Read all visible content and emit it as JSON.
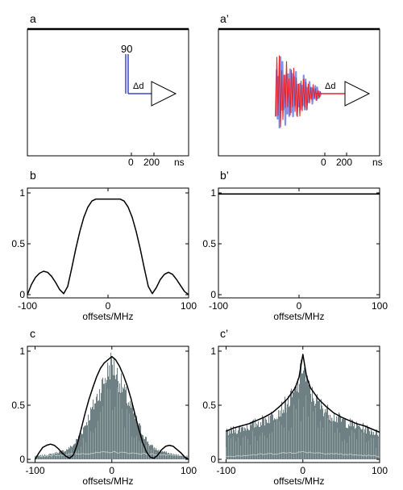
{
  "panel_labels": {
    "a": "a",
    "a_prime": "a’",
    "b": "b",
    "b_prime": "b’",
    "c": "c",
    "c_prime": "c’"
  },
  "pulse_a": {
    "amplitude_label": "90",
    "delay_label": "Δd",
    "axis_ticks": [
      "0",
      "200"
    ],
    "axis_unit": "ns",
    "pulse_color": "#3a46c8"
  },
  "pulse_a_prime": {
    "delay_label": "Δd",
    "axis_ticks": [
      "0",
      "200"
    ],
    "axis_unit": "ns",
    "colors": [
      "#e8232a",
      "#6f7fe0"
    ]
  },
  "chart_data": [
    {
      "panel": "b",
      "type": "line",
      "xlabel": "offsets/MHz",
      "ylabel": "",
      "xlim": [
        -100,
        100
      ],
      "ylim": [
        0,
        1
      ],
      "xticks": [
        "-100",
        "0",
        "100"
      ],
      "yticks": [
        "0",
        "0.5",
        "1"
      ],
      "series": [
        {
          "color": "#000000",
          "x": [
            -100,
            -95,
            -90,
            -85,
            -80,
            -75,
            -70,
            -65,
            -60,
            -55,
            -50,
            -45,
            -40,
            -35,
            -30,
            -25,
            -20,
            -15,
            -10,
            -5,
            0,
            5,
            10,
            15,
            20,
            25,
            30,
            35,
            40,
            45,
            50,
            55,
            60,
            65,
            70,
            75,
            80,
            85,
            90,
            95,
            100
          ],
          "y": [
            0.0,
            0.1,
            0.17,
            0.21,
            0.23,
            0.22,
            0.18,
            0.12,
            0.05,
            0.01,
            0.08,
            0.26,
            0.45,
            0.62,
            0.76,
            0.86,
            0.92,
            0.94,
            0.94,
            0.94,
            0.94,
            0.94,
            0.94,
            0.94,
            0.92,
            0.86,
            0.76,
            0.62,
            0.45,
            0.26,
            0.08,
            0.01,
            0.07,
            0.15,
            0.2,
            0.22,
            0.2,
            0.15,
            0.09,
            0.03,
            0.0
          ]
        }
      ]
    },
    {
      "panel": "b_prime",
      "type": "line",
      "xlabel": "offsets/MHz",
      "ylabel": "",
      "xlim": [
        -100,
        100
      ],
      "ylim": [
        0,
        1
      ],
      "xticks": [
        "-100",
        "0",
        "100"
      ],
      "yticks": [
        "0",
        "0.5",
        "1"
      ],
      "series": [
        {
          "color": "#000000",
          "x": [
            -100,
            -90,
            -80,
            -70,
            -60,
            -50,
            -40,
            -30,
            -20,
            -10,
            0,
            10,
            20,
            30,
            40,
            50,
            60,
            70,
            80,
            90,
            100
          ],
          "y": [
            0.99,
            0.99,
            0.99,
            0.99,
            0.99,
            0.99,
            0.99,
            0.99,
            0.99,
            0.99,
            0.99,
            0.99,
            0.99,
            0.99,
            0.99,
            0.99,
            0.99,
            0.99,
            0.99,
            0.99,
            0.99
          ]
        }
      ]
    },
    {
      "panel": "c",
      "type": "area",
      "xlabel": "offsets/MHz",
      "ylabel": "",
      "xlim": [
        -110,
        100
      ],
      "ylim": [
        0,
        1
      ],
      "xticks": [
        "-100",
        "0",
        "100"
      ],
      "yticks": [
        "0",
        "0.5",
        "1"
      ],
      "series": [
        {
          "color": "#000000",
          "x": [
            -100,
            -95,
            -90,
            -85,
            -80,
            -75,
            -70,
            -65,
            -60,
            -55,
            -50,
            -45,
            -40,
            -35,
            -30,
            -25,
            -20,
            -15,
            -10,
            -5,
            0,
            5,
            10,
            15,
            20,
            25,
            30,
            35,
            40,
            45,
            50,
            55,
            60,
            65,
            70,
            75,
            80,
            85,
            90,
            95,
            100
          ],
          "y": [
            0.0,
            0.06,
            0.11,
            0.13,
            0.14,
            0.13,
            0.1,
            0.06,
            0.03,
            0.01,
            0.04,
            0.14,
            0.28,
            0.42,
            0.55,
            0.66,
            0.76,
            0.84,
            0.89,
            0.92,
            0.95,
            0.92,
            0.86,
            0.78,
            0.68,
            0.56,
            0.42,
            0.28,
            0.16,
            0.07,
            0.02,
            0.01,
            0.04,
            0.09,
            0.12,
            0.13,
            0.12,
            0.09,
            0.06,
            0.02,
            0.0
          ]
        },
        {
          "color": "#6e8083",
          "x": [
            -100,
            -90,
            -80,
            -70,
            -60,
            -50,
            -40,
            -30,
            -20,
            -10,
            0,
            10,
            20,
            30,
            40,
            50,
            60,
            70,
            80,
            90,
            100
          ],
          "y": [
            0.03,
            0.04,
            0.05,
            0.07,
            0.09,
            0.14,
            0.26,
            0.42,
            0.6,
            0.78,
            0.97,
            0.78,
            0.6,
            0.42,
            0.26,
            0.14,
            0.09,
            0.07,
            0.05,
            0.04,
            0.03
          ]
        }
      ]
    },
    {
      "panel": "c_prime",
      "type": "area",
      "xlabel": "offsets/MHz",
      "ylabel": "",
      "xlim": [
        -110,
        100
      ],
      "ylim": [
        0,
        1
      ],
      "xticks": [
        "-100",
        "0",
        "100"
      ],
      "yticks": [
        "0",
        "0.5",
        "1"
      ],
      "series": [
        {
          "color": "#000000",
          "x": [
            -100,
            -90,
            -80,
            -70,
            -60,
            -50,
            -40,
            -30,
            -20,
            -10,
            -5,
            0,
            5,
            10,
            20,
            30,
            40,
            50,
            60,
            70,
            80,
            90,
            100
          ],
          "y": [
            0.26,
            0.29,
            0.31,
            0.33,
            0.36,
            0.39,
            0.43,
            0.49,
            0.56,
            0.66,
            0.76,
            0.97,
            0.76,
            0.66,
            0.56,
            0.49,
            0.43,
            0.39,
            0.36,
            0.33,
            0.31,
            0.28,
            0.25
          ]
        },
        {
          "color": "#6e8083",
          "x": [
            -100,
            -90,
            -80,
            -70,
            -60,
            -50,
            -40,
            -30,
            -20,
            -10,
            -5,
            0,
            5,
            10,
            20,
            30,
            40,
            50,
            60,
            70,
            80,
            90,
            100
          ],
          "y": [
            0.26,
            0.29,
            0.31,
            0.33,
            0.36,
            0.39,
            0.43,
            0.49,
            0.56,
            0.66,
            0.76,
            0.97,
            0.76,
            0.66,
            0.56,
            0.49,
            0.43,
            0.39,
            0.36,
            0.33,
            0.31,
            0.28,
            0.25
          ]
        }
      ]
    }
  ]
}
